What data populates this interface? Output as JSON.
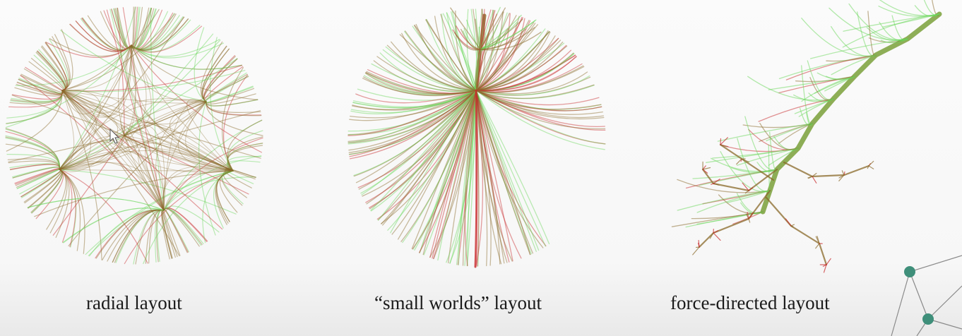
{
  "slide": {
    "panels": [
      {
        "id": "radial",
        "caption": "radial layout"
      },
      {
        "id": "small-worlds",
        "caption": "“small worlds” layout"
      },
      {
        "id": "force-directed",
        "caption": "force-directed layout"
      }
    ]
  },
  "colors": {
    "background": "#f8f8f8",
    "edge_brown": "#8a6a2a",
    "edge_green": "#6ad85a",
    "edge_red": "#c8282a",
    "corner_node": "#3f8f7a",
    "corner_line": "#7a7a7a"
  },
  "icons": [
    "mouse-cursor-icon",
    "network-graph-decoration"
  ]
}
